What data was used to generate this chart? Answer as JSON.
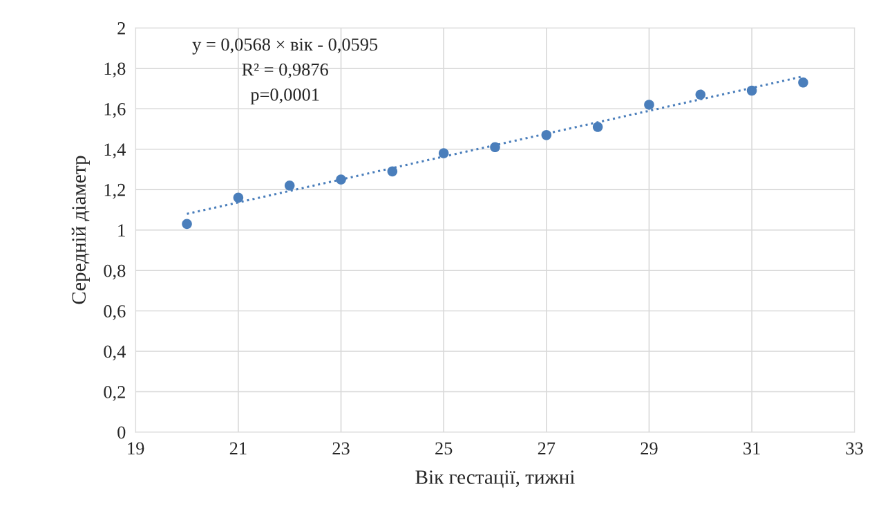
{
  "chart_data": {
    "type": "scatter",
    "xlabel": "Вік гестації, тижні",
    "ylabel": "Середній діаметр",
    "annotations": [
      "y = 0,0568 × вік - 0,0595",
      "R² = 0,9876",
      "p=0,0001"
    ],
    "series": [
      {
        "color": "#4a7ebb",
        "marker": "circle",
        "x": [
          20,
          21,
          22,
          23,
          24,
          25,
          26,
          27,
          28,
          29,
          30,
          31,
          32
        ],
        "values": [
          1.03,
          1.16,
          1.22,
          1.25,
          1.29,
          1.38,
          1.41,
          1.47,
          1.51,
          1.62,
          1.67,
          1.69,
          1.73
        ]
      },
      {
        "type": "line",
        "color": "#4a7ebb",
        "line_style": "dotted",
        "marker": "none",
        "x": [
          20,
          32
        ],
        "values": [
          1.08,
          1.76
        ]
      }
    ],
    "xlim": [
      19,
      33
    ],
    "xticks": [
      19,
      21,
      23,
      25,
      27,
      29,
      31,
      33
    ],
    "ylim": [
      0,
      2
    ],
    "yticks": [
      {
        "value": 0,
        "label": "0"
      },
      {
        "value": 0.2,
        "label": "0,2"
      },
      {
        "value": 0.4,
        "label": "0,4"
      },
      {
        "value": 0.6,
        "label": "0,6"
      },
      {
        "value": 0.8,
        "label": "0,8"
      },
      {
        "value": 1,
        "label": "1"
      },
      {
        "value": 1.2,
        "label": "1,2"
      },
      {
        "value": 1.4,
        "label": "1,4"
      },
      {
        "value": 1.6,
        "label": "1,6"
      },
      {
        "value": 1.8,
        "label": "1,8"
      },
      {
        "value": 2,
        "label": "2"
      }
    ],
    "grid": true,
    "legend": false
  }
}
